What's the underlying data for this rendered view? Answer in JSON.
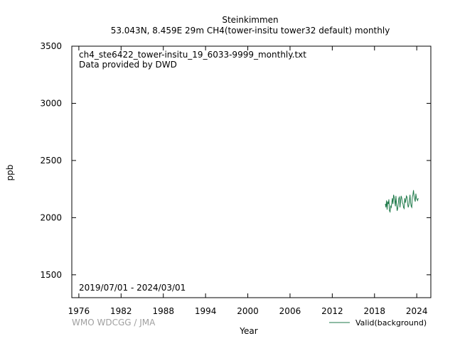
{
  "header": {
    "station": "Steinkimmen",
    "subtitle": "53.043N, 8.459E 29m    CH4(tower-insitu tower32 default) monthly"
  },
  "plot_notes": {
    "filename": "ch4_ste6422_tower-insitu_19_6033-9999_monthly.txt",
    "provider": "Data provided by DWD",
    "period": "2019/07/01 - 2024/03/01"
  },
  "credit": "WMO WDCGG / JMA",
  "chart_data": {
    "type": "line",
    "xlabel": "Year",
    "ylabel": "ppb",
    "xlim": [
      1975,
      2026
    ],
    "ylim": [
      1300,
      3500
    ],
    "x_ticks": [
      1976,
      1982,
      1988,
      1994,
      2000,
      2006,
      2012,
      2018,
      2024
    ],
    "y_ticks": [
      1500,
      2000,
      2500,
      3000,
      3500
    ],
    "grid": false,
    "legend_position": "bottom-right",
    "colors": {
      "series": "#1f7a4a",
      "axis": "#000000",
      "credit": "#a0a0a0"
    },
    "series": [
      {
        "name": "Valid(background)",
        "x": [
          2019.54,
          2019.62,
          2019.71,
          2019.79,
          2019.87,
          2019.96,
          2020.04,
          2020.12,
          2020.21,
          2020.29,
          2020.37,
          2020.46,
          2020.54,
          2020.62,
          2020.71,
          2020.79,
          2020.87,
          2020.96,
          2021.04,
          2021.12,
          2021.21,
          2021.29,
          2021.37,
          2021.46,
          2021.54,
          2021.62,
          2021.71,
          2021.79,
          2021.87,
          2021.96,
          2022.04,
          2022.12,
          2022.21,
          2022.29,
          2022.37,
          2022.46,
          2022.54,
          2022.62,
          2022.71,
          2022.79,
          2022.87,
          2022.96,
          2023.04,
          2023.12,
          2023.21,
          2023.29,
          2023.37,
          2023.46,
          2023.54,
          2023.62,
          2023.71,
          2023.79,
          2023.87,
          2023.96,
          2024.04,
          2024.12,
          2024.21
        ],
        "y": [
          2120,
          2090,
          2150,
          2070,
          2140,
          2120,
          2160,
          2060,
          2050,
          2100,
          2090,
          2130,
          2170,
          2120,
          2200,
          2180,
          2150,
          2100,
          2190,
          2120,
          2060,
          2080,
          2120,
          2170,
          2180,
          2090,
          2150,
          2190,
          2170,
          2130,
          2120,
          2090,
          2080,
          2170,
          2130,
          2160,
          2190,
          2180,
          2120,
          2090,
          2110,
          2150,
          2200,
          2130,
          2100,
          2090,
          2180,
          2200,
          2240,
          2190,
          2160,
          2140,
          2210,
          2170,
          2160,
          2150,
          2170
        ]
      }
    ]
  }
}
